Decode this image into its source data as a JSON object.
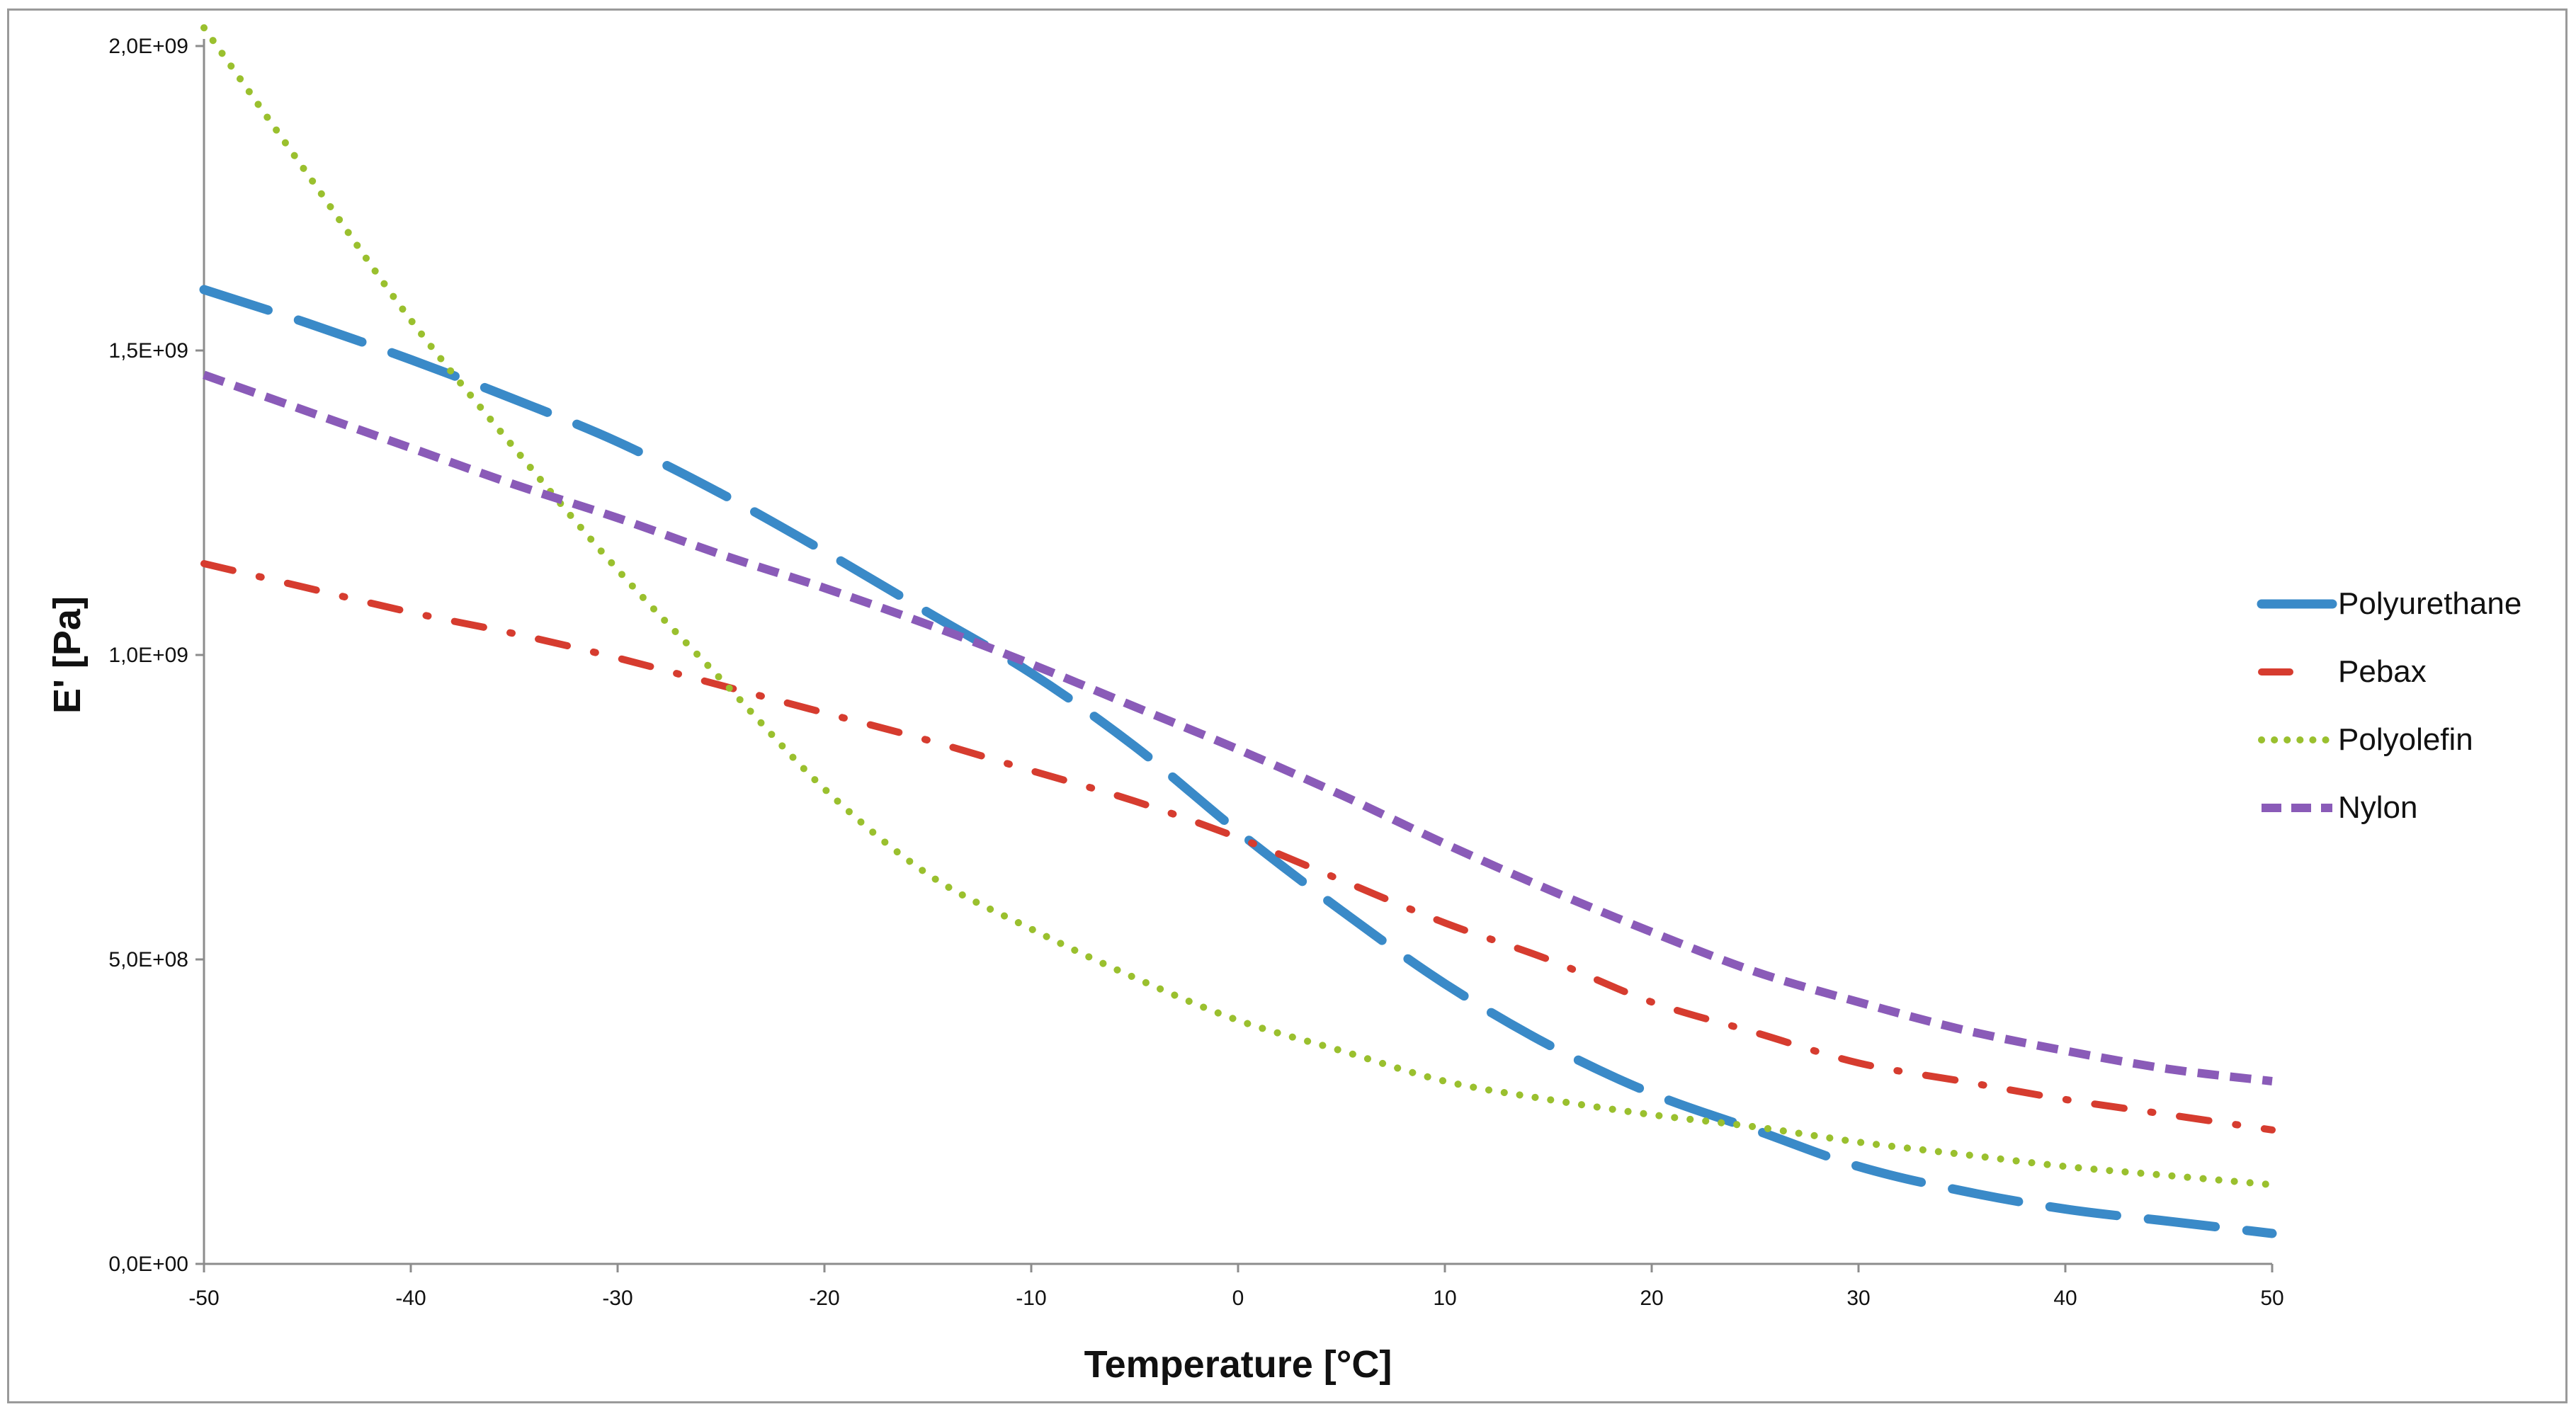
{
  "chart_data": {
    "type": "line",
    "title": "",
    "xlabel": "Temperature [°C]",
    "ylabel": "E' [Pa]",
    "xlim": [
      -50,
      50
    ],
    "ylim": [
      0,
      2000000000
    ],
    "x_ticks": [
      -50,
      -40,
      -30,
      -20,
      -10,
      0,
      10,
      20,
      30,
      40,
      50
    ],
    "x_tick_labels": [
      "-50",
      "-40",
      "-30",
      "-20",
      "-10",
      "0",
      "10",
      "20",
      "30",
      "40",
      "50"
    ],
    "y_ticks": [
      0,
      500000000,
      1000000000,
      1500000000,
      2000000000
    ],
    "y_tick_labels": [
      "0,0E+00",
      "5,0E+08",
      "1,0E+09",
      "1,5E+09",
      "2,0E+09"
    ],
    "grid": false,
    "legend_position": "right",
    "x": [
      -50,
      -45,
      -40,
      -35,
      -30,
      -25,
      -20,
      -15,
      -10,
      -5,
      0,
      5,
      10,
      15,
      20,
      25,
      30,
      35,
      40,
      45,
      50
    ],
    "series": [
      {
        "name": "Polyurethane",
        "color": "#3a8ac8",
        "style": "long-dash",
        "values": [
          1600000000,
          1545000000,
          1485000000,
          1420000000,
          1350000000,
          1265000000,
          1170000000,
          1070000000,
          970000000,
          850000000,
          710000000,
          580000000,
          460000000,
          360000000,
          280000000,
          220000000,
          160000000,
          120000000,
          90000000,
          70000000,
          50000000
        ]
      },
      {
        "name": "Pebax",
        "color": "#d63c2f",
        "style": "dash-dot",
        "values": [
          1150000000,
          1110000000,
          1070000000,
          1035000000,
          995000000,
          950000000,
          905000000,
          860000000,
          810000000,
          760000000,
          700000000,
          630000000,
          560000000,
          500000000,
          430000000,
          380000000,
          330000000,
          300000000,
          270000000,
          245000000,
          220000000
        ]
      },
      {
        "name": "Polyolefin",
        "color": "#9ac02e",
        "style": "dotted",
        "values": [
          2030000000,
          1790000000,
          1550000000,
          1340000000,
          1140000000,
          960000000,
          780000000,
          640000000,
          550000000,
          470000000,
          400000000,
          350000000,
          300000000,
          270000000,
          245000000,
          225000000,
          200000000,
          180000000,
          160000000,
          145000000,
          130000000
        ]
      },
      {
        "name": "Nylon",
        "color": "#8a5bb8",
        "style": "short-dash",
        "values": [
          1460000000,
          1400000000,
          1340000000,
          1280000000,
          1225000000,
          1165000000,
          1110000000,
          1050000000,
          985000000,
          915000000,
          845000000,
          770000000,
          690000000,
          615000000,
          545000000,
          480000000,
          430000000,
          385000000,
          350000000,
          320000000,
          300000000
        ]
      }
    ]
  }
}
